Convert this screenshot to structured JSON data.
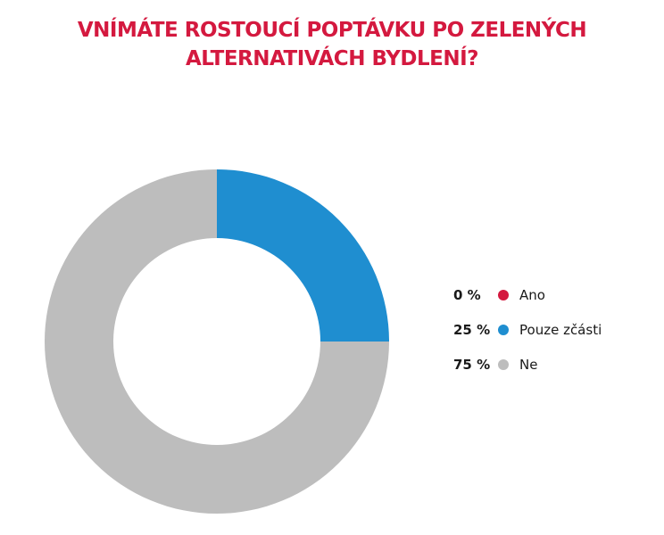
{
  "chart_data": {
    "type": "pie",
    "title_lines": [
      "VNÍMÁTE ROSTOUCÍ POPTÁVKU PO ZELENÝCH",
      "ALTERNATIVÁCH BYDLENÍ?"
    ],
    "categories": [
      "Ano",
      "Pouze zčásti",
      "Ne"
    ],
    "values": [
      0,
      25,
      75
    ],
    "value_labels": [
      "0 %",
      "25 %",
      "75 %"
    ],
    "colors": [
      "#d4193f",
      "#1f8ed0",
      "#bdbdbd"
    ],
    "donut": true,
    "legend_position": "right"
  }
}
